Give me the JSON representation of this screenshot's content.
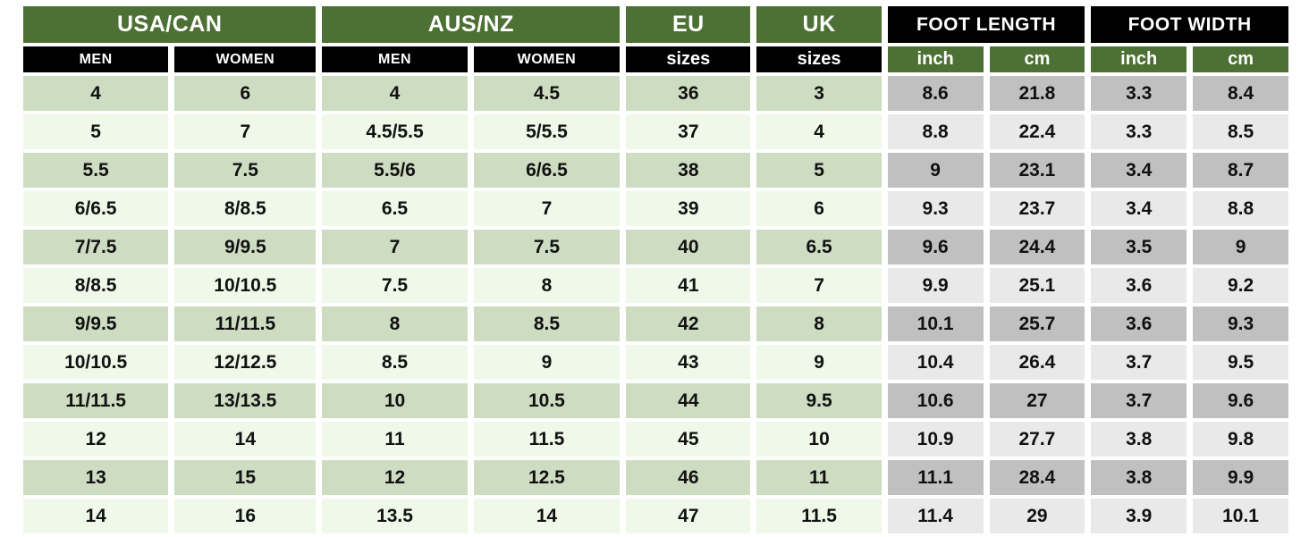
{
  "chart_data": {
    "type": "table",
    "column_groups": [
      {
        "label": "USA/CAN",
        "span": 2
      },
      {
        "label": "AUS/NZ",
        "span": 2
      },
      {
        "label": "EU",
        "span": 1
      },
      {
        "label": "UK",
        "span": 1
      },
      {
        "label": "FOOT LENGTH",
        "span": 2
      },
      {
        "label": "FOOT WIDTH",
        "span": 2
      }
    ],
    "columns": [
      "MEN",
      "WOMEN",
      "MEN",
      "WOMEN",
      "sizes",
      "sizes",
      "inch",
      "cm",
      "inch",
      "cm"
    ],
    "rows": [
      [
        "4",
        "6",
        "4",
        "4.5",
        "36",
        "3",
        "8.6",
        "21.8",
        "3.3",
        "8.4"
      ],
      [
        "5",
        "7",
        "4.5/5.5",
        "5/5.5",
        "37",
        "4",
        "8.8",
        "22.4",
        "3.3",
        "8.5"
      ],
      [
        "5.5",
        "7.5",
        "5.5/6",
        "6/6.5",
        "38",
        "5",
        "9",
        "23.1",
        "3.4",
        "8.7"
      ],
      [
        "6/6.5",
        "8/8.5",
        "6.5",
        "7",
        "39",
        "6",
        "9.3",
        "23.7",
        "3.4",
        "8.8"
      ],
      [
        "7/7.5",
        "9/9.5",
        "7",
        "7.5",
        "40",
        "6.5",
        "9.6",
        "24.4",
        "3.5",
        "9"
      ],
      [
        "8/8.5",
        "10/10.5",
        "7.5",
        "8",
        "41",
        "7",
        "9.9",
        "25.1",
        "3.6",
        "9.2"
      ],
      [
        "9/9.5",
        "11/11.5",
        "8",
        "8.5",
        "42",
        "8",
        "10.1",
        "25.7",
        "3.6",
        "9.3"
      ],
      [
        "10/10.5",
        "12/12.5",
        "8.5",
        "9",
        "43",
        "9",
        "10.4",
        "26.4",
        "3.7",
        "9.5"
      ],
      [
        "11/11.5",
        "13/13.5",
        "10",
        "10.5",
        "44",
        "9.5",
        "10.6",
        "27",
        "3.7",
        "9.6"
      ],
      [
        "12",
        "14",
        "11",
        "11.5",
        "45",
        "10",
        "10.9",
        "27.7",
        "3.8",
        "9.8"
      ],
      [
        "13",
        "15",
        "12",
        "12.5",
        "46",
        "11",
        "11.1",
        "28.4",
        "3.8",
        "9.9"
      ],
      [
        "14",
        "16",
        "13.5",
        "14",
        "47",
        "11.5",
        "11.4",
        "29",
        "3.9",
        "10.1"
      ]
    ],
    "layout": {
      "grid": "off",
      "cell_gap_color": "#ffffff",
      "left_side_tint": "green",
      "right_side_tint": "gray"
    }
  },
  "colors": {
    "green": "#4d7134",
    "black": "#000000",
    "sage": "#cedcc2",
    "pale": "#f0f8e9",
    "gray-dark": "#c0c0c0",
    "gray-light": "#e9e9e9",
    "text": "#111111",
    "header-text": "#ffffff",
    "bg": "#ffffff"
  }
}
